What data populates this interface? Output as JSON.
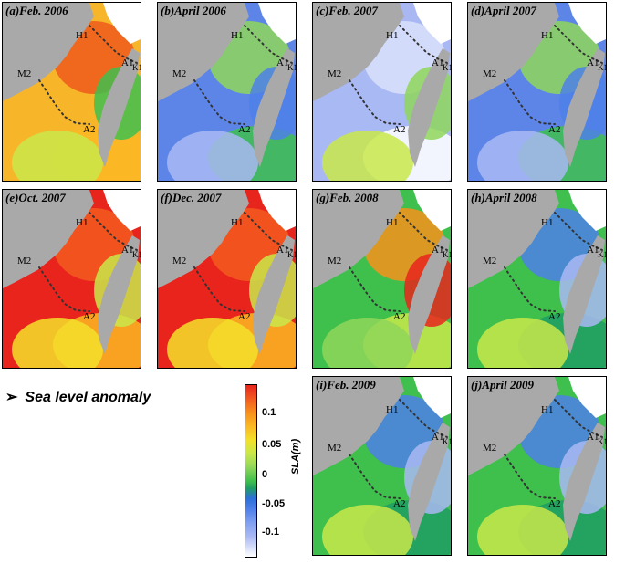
{
  "panels": [
    {
      "title": "(a)Feb. 2006",
      "scheme": "warm"
    },
    {
      "title": "(b)April 2006",
      "scheme": "cool"
    },
    {
      "title": "(c)Feb. 2007",
      "scheme": "pale"
    },
    {
      "title": "(d)April 2007",
      "scheme": "cool"
    },
    {
      "title": "(e)Oct. 2007",
      "scheme": "hot"
    },
    {
      "title": "(f)Dec. 2007",
      "scheme": "hot"
    },
    {
      "title": "(g)Feb. 2008",
      "scheme": "mixed"
    },
    {
      "title": "(h)April 2008",
      "scheme": "green"
    },
    {
      "title": "(i)Feb. 2009",
      "scheme": "green"
    },
    {
      "title": "(j)April 2009",
      "scheme": "green"
    }
  ],
  "stations": {
    "h1": "H1",
    "a1": "A1",
    "k1": "K1",
    "m2": "M2",
    "a2": "A2"
  },
  "legend": {
    "label": "Sea level anomaly"
  },
  "colorbar": {
    "title": "SLA(m)",
    "ticks": [
      "0.1",
      "0.05",
      "0",
      "-0.05",
      "-0.1"
    ]
  }
}
